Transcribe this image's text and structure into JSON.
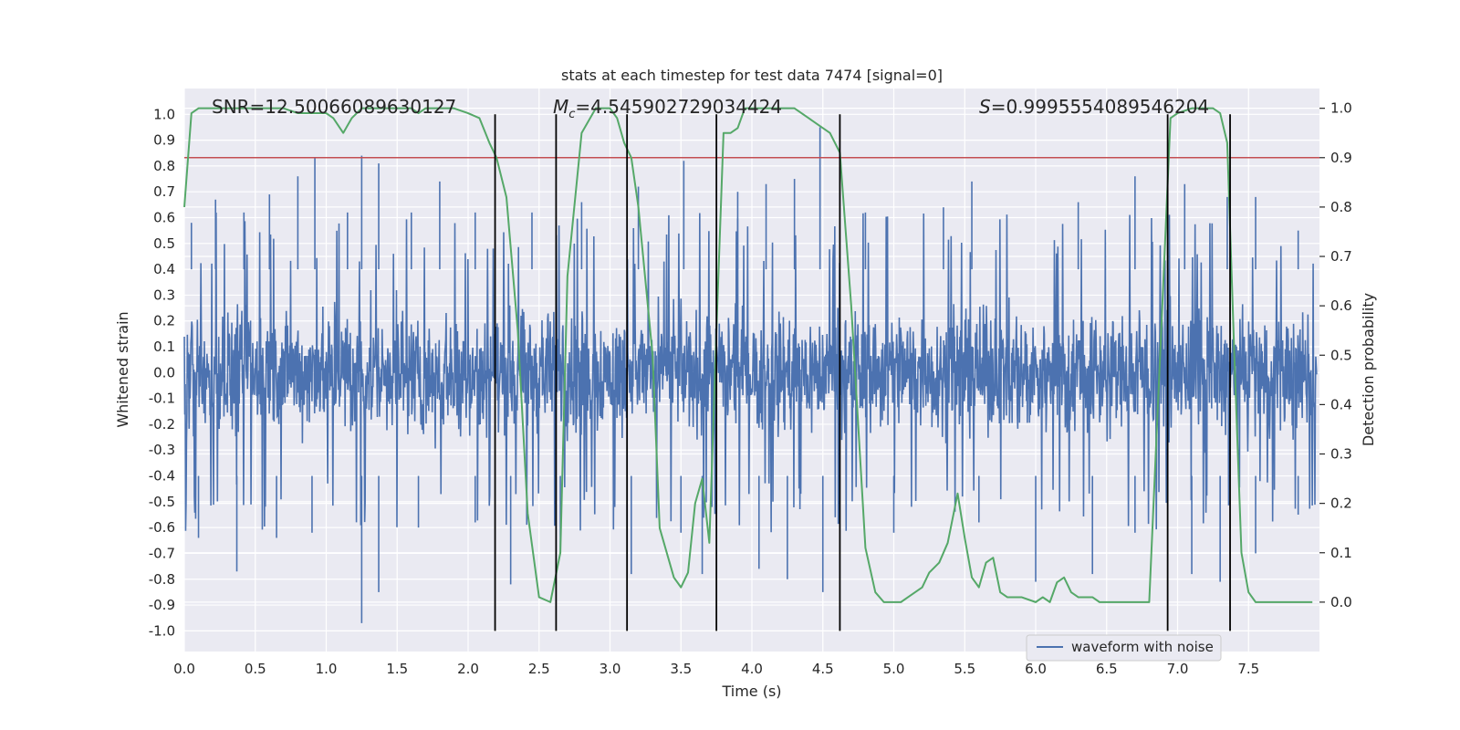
{
  "chart_data": {
    "type": "line",
    "title": "stats at each timestep for test data 7474 [signal=0]",
    "xlabel": "Time (s)",
    "ylabel_left": "Whitened strain",
    "ylabel_right": "Detection probability",
    "xlim": [
      0.0,
      8.0
    ],
    "ylim_left": [
      -1.08,
      1.1
    ],
    "ylim_right": [
      -0.1,
      1.04
    ],
    "x_ticks": [
      "0.0",
      "0.5",
      "1.0",
      "1.5",
      "2.0",
      "2.5",
      "3.0",
      "3.5",
      "4.0",
      "4.5",
      "5.0",
      "5.5",
      "6.0",
      "6.5",
      "7.0",
      "7.5"
    ],
    "x_tick_values": [
      0.0,
      0.5,
      1.0,
      1.5,
      2.0,
      2.5,
      3.0,
      3.5,
      4.0,
      4.5,
      5.0,
      5.5,
      6.0,
      6.5,
      7.0,
      7.5
    ],
    "y_ticks_left": [
      "1.0",
      "0.9",
      "0.8",
      "0.7",
      "0.6",
      "0.5",
      "0.4",
      "0.3",
      "0.2",
      "0.1",
      "0.0",
      "-0.1",
      "-0.2",
      "-0.3",
      "-0.4",
      "-0.5",
      "-0.6",
      "-0.7",
      "-0.8",
      "-0.9",
      "-1.0"
    ],
    "y_tick_values_left": [
      1.0,
      0.9,
      0.8,
      0.7,
      0.6,
      0.5,
      0.4,
      0.3,
      0.2,
      0.1,
      0.0,
      -0.1,
      -0.2,
      -0.3,
      -0.4,
      -0.5,
      -0.6,
      -0.7,
      -0.8,
      -0.9,
      -1.0
    ],
    "y_ticks_right": [
      "1.0",
      "0.9",
      "0.8",
      "0.7",
      "0.6",
      "0.5",
      "0.4",
      "0.3",
      "0.2",
      "0.1",
      "0.0"
    ],
    "y_tick_values_right": [
      1.0,
      0.9,
      0.8,
      0.7,
      0.6,
      0.5,
      0.4,
      0.3,
      0.2,
      0.1,
      0.0
    ],
    "annotations": {
      "snr": "SNR=12.50066089630127",
      "mc_symbol": "M",
      "mc_subscript": "c",
      "mc_value": "=4.545902729034424",
      "s_symbol": "S",
      "s_value": "=0.9995554089546204"
    },
    "legend": {
      "placement": "lower-right",
      "entries": [
        "waveform with noise"
      ]
    },
    "grid": true,
    "series": [
      {
        "name": "waveform with noise",
        "axis": "left",
        "color": "#4c72b0",
        "envelope": {
          "typical_amplitude": 0.42,
          "peak_highs": [
            [
              0.05,
              0.58
            ],
            [
              0.22,
              0.67
            ],
            [
              0.42,
              0.62
            ],
            [
              0.6,
              0.69
            ],
            [
              0.8,
              0.76
            ],
            [
              0.92,
              0.83
            ],
            [
              1.15,
              0.62
            ],
            [
              1.25,
              0.84
            ],
            [
              1.37,
              0.81
            ],
            [
              1.6,
              0.62
            ],
            [
              1.8,
              0.74
            ],
            [
              2.05,
              0.62
            ],
            [
              2.45,
              0.62
            ],
            [
              2.8,
              0.66
            ],
            [
              3.2,
              0.72
            ],
            [
              3.52,
              0.82
            ],
            [
              3.9,
              0.7
            ],
            [
              4.1,
              0.73
            ],
            [
              4.3,
              0.75
            ],
            [
              4.48,
              0.95
            ],
            [
              4.8,
              0.62
            ],
            [
              5.35,
              0.64
            ],
            [
              5.55,
              0.74
            ],
            [
              6.3,
              0.66
            ],
            [
              6.7,
              0.76
            ],
            [
              7.05,
              0.73
            ],
            [
              7.35,
              0.68
            ],
            [
              7.55,
              0.68
            ],
            [
              7.85,
              0.55
            ]
          ],
          "peak_lows": [
            [
              0.1,
              -0.64
            ],
            [
              0.37,
              -0.77
            ],
            [
              0.65,
              -0.64
            ],
            [
              0.9,
              -0.62
            ],
            [
              1.25,
              -0.97
            ],
            [
              1.37,
              -0.85
            ],
            [
              1.65,
              -0.6
            ],
            [
              2.05,
              -0.58
            ],
            [
              2.3,
              -0.82
            ],
            [
              2.65,
              -0.7
            ],
            [
              3.15,
              -0.78
            ],
            [
              3.5,
              -0.62
            ],
            [
              3.65,
              -0.78
            ],
            [
              4.05,
              -0.76
            ],
            [
              4.25,
              -0.8
            ],
            [
              4.5,
              -0.85
            ],
            [
              5.0,
              -0.62
            ],
            [
              5.6,
              -0.58
            ],
            [
              6.0,
              -0.81
            ],
            [
              6.4,
              -0.78
            ],
            [
              6.7,
              -0.62
            ],
            [
              7.1,
              -0.78
            ],
            [
              7.3,
              -0.81
            ],
            [
              7.55,
              -0.7
            ],
            [
              7.85,
              -0.55
            ]
          ]
        }
      },
      {
        "name": "",
        "axis": "right",
        "color": "#55a868",
        "x": [
          0.0,
          0.05,
          0.1,
          0.2,
          0.3,
          0.4,
          0.5,
          0.6,
          0.7,
          0.8,
          0.9,
          1.0,
          1.05,
          1.12,
          1.18,
          1.25,
          1.3,
          1.4,
          1.5,
          1.6,
          1.65,
          1.7,
          1.8,
          1.9,
          2.0,
          2.08,
          2.15,
          2.2,
          2.27,
          2.35,
          2.42,
          2.5,
          2.58,
          2.65,
          2.7,
          2.8,
          2.9,
          3.0,
          3.05,
          3.1,
          3.15,
          3.2,
          3.3,
          3.35,
          3.45,
          3.5,
          3.55,
          3.6,
          3.65,
          3.7,
          3.75,
          3.8,
          3.85,
          3.9,
          3.95,
          4.0,
          4.1,
          4.2,
          4.3,
          4.4,
          4.5,
          4.55,
          4.62,
          4.7,
          4.8,
          4.87,
          4.93,
          5.0,
          5.05,
          5.1,
          5.15,
          5.2,
          5.25,
          5.32,
          5.38,
          5.45,
          5.5,
          5.55,
          5.6,
          5.65,
          5.7,
          5.75,
          5.8,
          5.85,
          5.9,
          6.0,
          6.05,
          6.1,
          6.15,
          6.2,
          6.25,
          6.3,
          6.35,
          6.4,
          6.45,
          6.5,
          6.55,
          6.6,
          6.7,
          6.8,
          6.9,
          6.95,
          7.0,
          7.1,
          7.15,
          7.2,
          7.25,
          7.3,
          7.35,
          7.4,
          7.45,
          7.5,
          7.55,
          7.6,
          7.65,
          7.7,
          7.8,
          7.9,
          7.95
        ],
        "y": [
          0.8,
          0.99,
          1.0,
          1.0,
          1.0,
          1.0,
          1.0,
          1.0,
          1.0,
          0.99,
          0.99,
          0.99,
          0.98,
          0.95,
          0.98,
          1.0,
          1.0,
          1.0,
          1.0,
          1.0,
          0.99,
          1.0,
          1.0,
          1.0,
          0.99,
          0.98,
          0.93,
          0.9,
          0.82,
          0.55,
          0.18,
          0.01,
          0.0,
          0.1,
          0.66,
          0.95,
          1.0,
          1.0,
          0.98,
          0.93,
          0.9,
          0.8,
          0.5,
          0.15,
          0.05,
          0.03,
          0.06,
          0.2,
          0.25,
          0.12,
          0.55,
          0.95,
          0.95,
          0.96,
          1.0,
          1.0,
          1.0,
          1.0,
          1.0,
          0.98,
          0.96,
          0.95,
          0.91,
          0.6,
          0.11,
          0.02,
          0.0,
          0.0,
          0.0,
          0.01,
          0.02,
          0.03,
          0.06,
          0.08,
          0.12,
          0.22,
          0.13,
          0.05,
          0.03,
          0.08,
          0.09,
          0.02,
          0.01,
          0.01,
          0.01,
          0.0,
          0.01,
          0.0,
          0.04,
          0.05,
          0.02,
          0.01,
          0.01,
          0.01,
          0.0,
          0.0,
          0.0,
          0.0,
          0.0,
          0.0,
          0.65,
          0.98,
          0.99,
          1.0,
          1.0,
          1.0,
          1.0,
          0.99,
          0.93,
          0.5,
          0.1,
          0.02,
          0.0,
          0.0,
          0.0,
          0.0,
          0.0,
          0.0,
          0.0
        ]
      },
      {
        "name": "",
        "axis": "right",
        "color": "#c44e52",
        "kind": "threshold",
        "y": 0.9
      }
    ],
    "vertical_lines_x": [
      2.19,
      2.62,
      3.12,
      3.75,
      4.62,
      6.93,
      7.37
    ],
    "vertical_lines_y_range": [
      -1.0,
      1.0
    ]
  },
  "colors": {
    "plot_background": "#eaeaf2",
    "grid": "#ffffff",
    "waveform": "#4c72b0",
    "probability": "#55a868",
    "threshold": "#c44e52",
    "vertical_line": "#000000",
    "text": "#262626"
  }
}
